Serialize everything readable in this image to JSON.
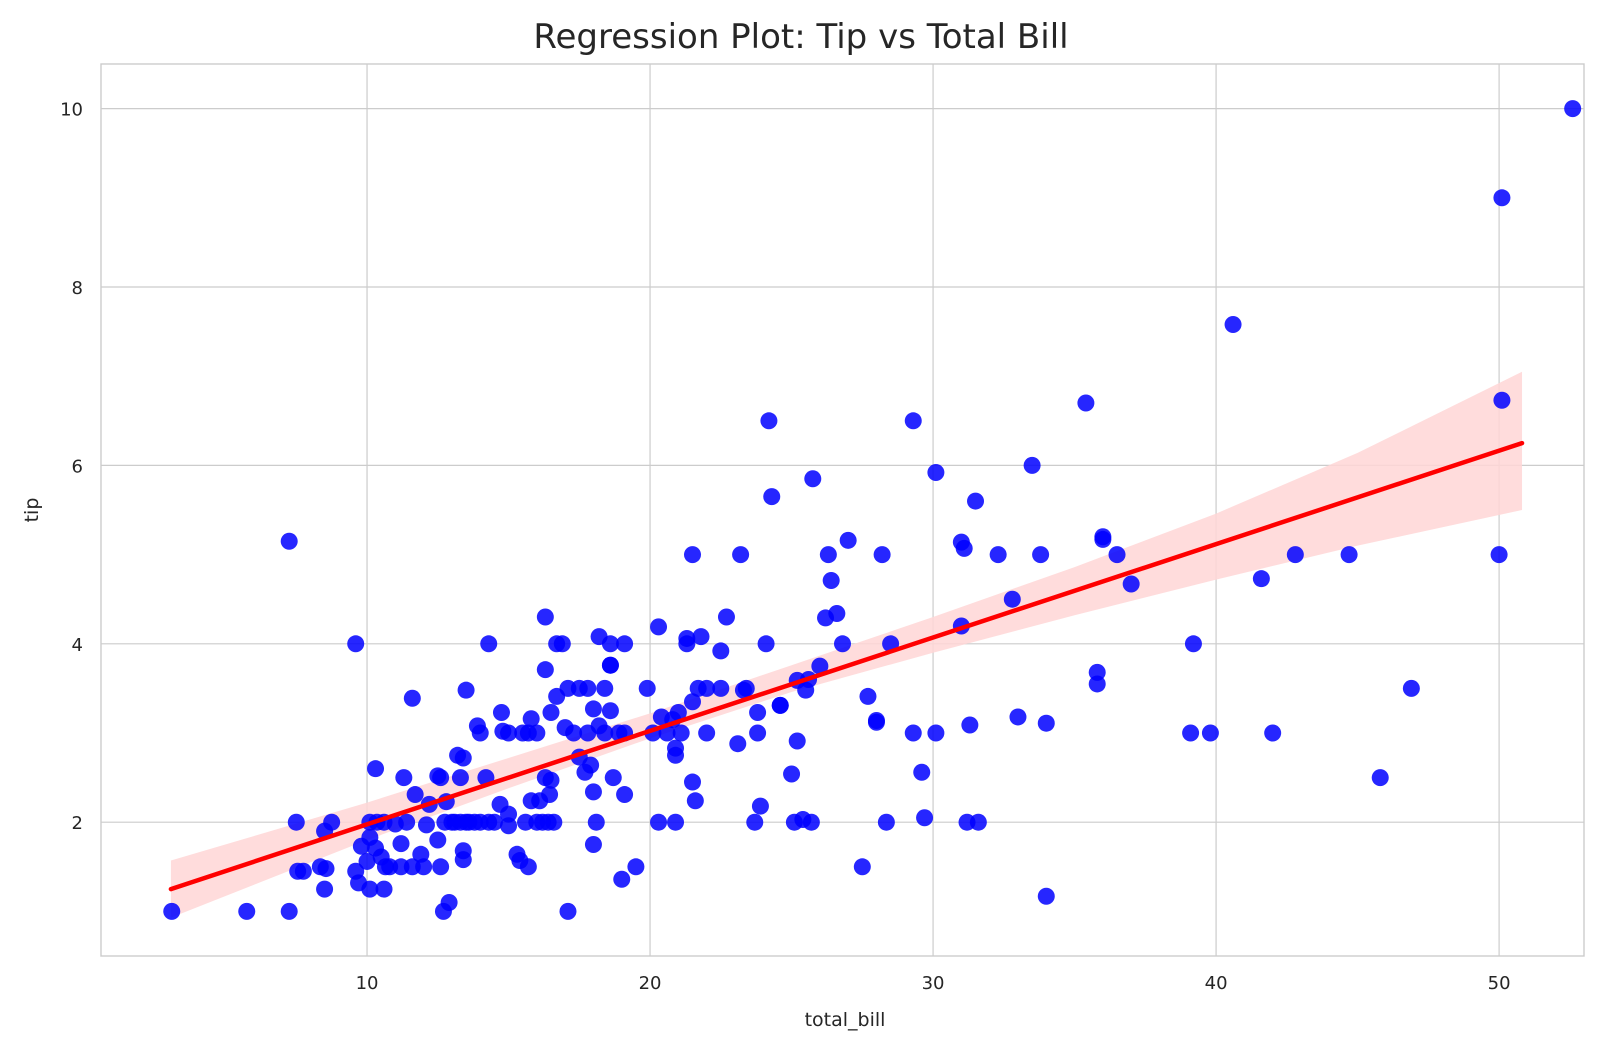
{
  "chart_data": {
    "type": "scatter",
    "title": "Regression Plot: Tip vs Total Bill",
    "xlabel": "total_bill",
    "ylabel": "tip",
    "xlim": [
      0.6,
      53
    ],
    "ylim": [
      0.5,
      10.5
    ],
    "xticks": [
      10,
      20,
      30,
      40,
      50
    ],
    "yticks": [
      2,
      4,
      6,
      8,
      10
    ],
    "grid": true,
    "colors": {
      "points": "#0000ff",
      "line": "#ff0000",
      "band": "#ffd6d6"
    },
    "points": [
      [
        3.1,
        1.0
      ],
      [
        5.75,
        1.0
      ],
      [
        7.25,
        1.0
      ],
      [
        7.25,
        5.15
      ],
      [
        7.5,
        2.0
      ],
      [
        7.55,
        1.45
      ],
      [
        7.75,
        1.45
      ],
      [
        8.35,
        1.5
      ],
      [
        8.5,
        1.25
      ],
      [
        8.5,
        1.9
      ],
      [
        8.55,
        1.48
      ],
      [
        8.75,
        2.0
      ],
      [
        9.6,
        1.45
      ],
      [
        9.6,
        4.0
      ],
      [
        9.7,
        1.32
      ],
      [
        9.8,
        1.73
      ],
      [
        10.0,
        1.56
      ],
      [
        10.1,
        1.25
      ],
      [
        10.1,
        2.0
      ],
      [
        10.1,
        1.83
      ],
      [
        10.3,
        1.71
      ],
      [
        10.3,
        2.6
      ],
      [
        10.35,
        2.0
      ],
      [
        10.5,
        1.61
      ],
      [
        10.6,
        1.25
      ],
      [
        10.6,
        2.0
      ],
      [
        10.65,
        1.5
      ],
      [
        10.8,
        1.5
      ],
      [
        11.0,
        1.98
      ],
      [
        11.2,
        1.76
      ],
      [
        11.2,
        1.5
      ],
      [
        11.3,
        2.5
      ],
      [
        11.4,
        2.0
      ],
      [
        11.6,
        1.5
      ],
      [
        11.6,
        3.39
      ],
      [
        11.7,
        2.31
      ],
      [
        11.9,
        1.64
      ],
      [
        12.0,
        1.5
      ],
      [
        12.1,
        1.97
      ],
      [
        12.2,
        2.2
      ],
      [
        12.5,
        1.8
      ],
      [
        12.5,
        2.52
      ],
      [
        12.6,
        1.5
      ],
      [
        12.6,
        2.5
      ],
      [
        12.7,
        1.0
      ],
      [
        12.75,
        2.0
      ],
      [
        12.8,
        2.23
      ],
      [
        12.9,
        1.1
      ],
      [
        13.0,
        2.0
      ],
      [
        13.1,
        2.0
      ],
      [
        13.2,
        2.75
      ],
      [
        13.3,
        2.0
      ],
      [
        13.3,
        2.5
      ],
      [
        13.4,
        2.72
      ],
      [
        13.4,
        1.68
      ],
      [
        13.4,
        1.58
      ],
      [
        13.5,
        2.0
      ],
      [
        13.5,
        3.48
      ],
      [
        13.6,
        2.0
      ],
      [
        13.8,
        2.0
      ],
      [
        13.9,
        3.08
      ],
      [
        14.0,
        2.0
      ],
      [
        14.0,
        3.0
      ],
      [
        14.2,
        2.5
      ],
      [
        14.3,
        2.0
      ],
      [
        14.3,
        4.0
      ],
      [
        14.5,
        2.0
      ],
      [
        14.7,
        2.2
      ],
      [
        14.75,
        3.23
      ],
      [
        14.8,
        3.02
      ],
      [
        15.0,
        2.09
      ],
      [
        15.0,
        1.96
      ],
      [
        15.0,
        3.0
      ],
      [
        15.3,
        1.64
      ],
      [
        15.4,
        1.57
      ],
      [
        15.5,
        3.0
      ],
      [
        15.6,
        2.0
      ],
      [
        15.7,
        1.5
      ],
      [
        15.7,
        3.0
      ],
      [
        15.8,
        2.24
      ],
      [
        15.8,
        3.16
      ],
      [
        16.0,
        2.0
      ],
      [
        16.0,
        3.0
      ],
      [
        16.1,
        2.24
      ],
      [
        16.2,
        2.0
      ],
      [
        16.3,
        2.5
      ],
      [
        16.3,
        3.71
      ],
      [
        16.3,
        4.3
      ],
      [
        16.4,
        2.0
      ],
      [
        16.45,
        2.31
      ],
      [
        16.5,
        2.47
      ],
      [
        16.5,
        3.23
      ],
      [
        16.6,
        2.0
      ],
      [
        16.7,
        4.0
      ],
      [
        16.7,
        3.41
      ],
      [
        16.9,
        4.0
      ],
      [
        17.0,
        3.06
      ],
      [
        17.1,
        1.0
      ],
      [
        17.1,
        3.5
      ],
      [
        17.3,
        3.0
      ],
      [
        17.5,
        2.73
      ],
      [
        17.5,
        3.5
      ],
      [
        17.7,
        2.56
      ],
      [
        17.8,
        3.5
      ],
      [
        17.8,
        3.0
      ],
      [
        17.9,
        2.64
      ],
      [
        18.0,
        3.27
      ],
      [
        18.0,
        1.75
      ],
      [
        18.0,
        2.34
      ],
      [
        18.1,
        2.0
      ],
      [
        18.2,
        3.08
      ],
      [
        18.2,
        4.08
      ],
      [
        18.4,
        3.5
      ],
      [
        18.4,
        3.0
      ],
      [
        18.6,
        3.25
      ],
      [
        18.6,
        3.76
      ],
      [
        18.6,
        3.76
      ],
      [
        18.6,
        4.0
      ],
      [
        18.7,
        2.5
      ],
      [
        18.9,
        3.0
      ],
      [
        19.0,
        1.36
      ],
      [
        19.1,
        2.31
      ],
      [
        19.1,
        4.0
      ],
      [
        19.1,
        3.0
      ],
      [
        19.5,
        1.5
      ],
      [
        19.9,
        3.5
      ],
      [
        20.1,
        3.0
      ],
      [
        20.3,
        2.0
      ],
      [
        20.3,
        4.19
      ],
      [
        20.4,
        3.18
      ],
      [
        20.6,
        3.0
      ],
      [
        20.8,
        3.15
      ],
      [
        20.9,
        2.0
      ],
      [
        20.9,
        2.83
      ],
      [
        20.9,
        2.75
      ],
      [
        21.0,
        3.23
      ],
      [
        21.1,
        3.0
      ],
      [
        21.3,
        4.06
      ],
      [
        21.3,
        4.0
      ],
      [
        21.5,
        3.35
      ],
      [
        21.5,
        2.45
      ],
      [
        21.5,
        5.0
      ],
      [
        21.6,
        2.24
      ],
      [
        21.7,
        3.5
      ],
      [
        21.8,
        4.08
      ],
      [
        22.0,
        3.5
      ],
      [
        22.0,
        3.0
      ],
      [
        22.5,
        3.5
      ],
      [
        22.5,
        3.92
      ],
      [
        22.7,
        4.3
      ],
      [
        23.1,
        2.88
      ],
      [
        23.2,
        5.0
      ],
      [
        23.3,
        3.48
      ],
      [
        23.4,
        3.5
      ],
      [
        23.7,
        2.0
      ],
      [
        23.8,
        3.0
      ],
      [
        23.8,
        3.23
      ],
      [
        23.9,
        2.18
      ],
      [
        24.1,
        4.0
      ],
      [
        24.2,
        6.5
      ],
      [
        24.3,
        5.65
      ],
      [
        24.6,
        3.31
      ],
      [
        24.6,
        3.31
      ],
      [
        25.0,
        2.54
      ],
      [
        25.1,
        2.0
      ],
      [
        25.2,
        2.91
      ],
      [
        25.2,
        3.59
      ],
      [
        25.4,
        2.03
      ],
      [
        25.5,
        3.48
      ],
      [
        25.6,
        3.6
      ],
      [
        25.7,
        2.0
      ],
      [
        25.75,
        5.85
      ],
      [
        26.0,
        3.75
      ],
      [
        26.2,
        4.29
      ],
      [
        26.3,
        5.0
      ],
      [
        26.4,
        4.71
      ],
      [
        26.6,
        4.34
      ],
      [
        26.8,
        4.0
      ],
      [
        27.0,
        5.16
      ],
      [
        27.5,
        1.5
      ],
      [
        27.7,
        3.41
      ],
      [
        28.0,
        3.14
      ],
      [
        28.0,
        3.12
      ],
      [
        28.2,
        5.0
      ],
      [
        28.35,
        2.0
      ],
      [
        28.5,
        4.0
      ],
      [
        29.3,
        6.5
      ],
      [
        29.3,
        3.0
      ],
      [
        29.6,
        2.56
      ],
      [
        29.7,
        2.05
      ],
      [
        30.1,
        5.92
      ],
      [
        30.1,
        3.0
      ],
      [
        31.0,
        4.2
      ],
      [
        31.0,
        5.14
      ],
      [
        31.1,
        5.07
      ],
      [
        31.2,
        2.0
      ],
      [
        31.3,
        3.09
      ],
      [
        31.5,
        5.6
      ],
      [
        31.6,
        2.0
      ],
      [
        32.3,
        5.0
      ],
      [
        32.8,
        4.5
      ],
      [
        33.0,
        3.18
      ],
      [
        33.5,
        6.0
      ],
      [
        33.8,
        5.0
      ],
      [
        34.0,
        1.17
      ],
      [
        34.0,
        3.11
      ],
      [
        35.4,
        6.7
      ],
      [
        35.8,
        3.68
      ],
      [
        35.8,
        3.55
      ],
      [
        36.0,
        5.2
      ],
      [
        36.0,
        5.17
      ],
      [
        36.5,
        5.0
      ],
      [
        37.0,
        4.67
      ],
      [
        39.1,
        3.0
      ],
      [
        39.2,
        4.0
      ],
      [
        39.8,
        3.0
      ],
      [
        40.6,
        7.58
      ],
      [
        41.6,
        4.73
      ],
      [
        42.0,
        3.0
      ],
      [
        42.8,
        5.0
      ],
      [
        44.7,
        5.0
      ],
      [
        45.8,
        2.5
      ],
      [
        46.9,
        3.5
      ],
      [
        50.0,
        5.0
      ],
      [
        50.1,
        9.0
      ],
      [
        50.1,
        6.73
      ],
      [
        52.6,
        10.0
      ]
    ],
    "regression": {
      "x_start": 3.07,
      "y_start": 1.25,
      "x_end": 50.81,
      "y_end": 6.25
    },
    "confidence_band": [
      [
        3.07,
        0.93,
        1.57
      ],
      [
        10.0,
        1.8,
        2.22
      ],
      [
        15.0,
        2.38,
        2.72
      ],
      [
        20.0,
        2.94,
        3.22
      ],
      [
        25.0,
        3.46,
        3.76
      ],
      [
        30.0,
        3.9,
        4.3
      ],
      [
        35.0,
        4.32,
        4.86
      ],
      [
        40.0,
        4.72,
        5.46
      ],
      [
        45.0,
        5.1,
        6.14
      ],
      [
        50.81,
        5.5,
        7.05
      ]
    ]
  }
}
